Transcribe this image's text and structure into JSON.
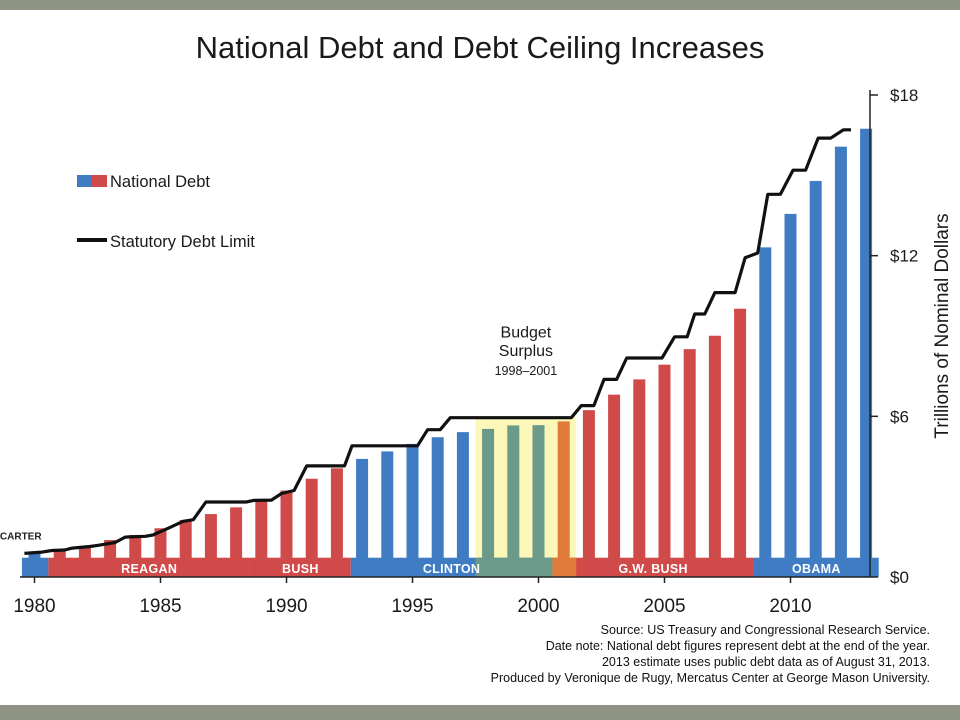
{
  "chart_data": {
    "type": "bar",
    "title": "National Debt and Debt Ceiling Increases",
    "ylabel": "Trillions of Nominal Dollars",
    "ylim": [
      0,
      18
    ],
    "y_ticks": [
      {
        "value": 0,
        "label": "$0"
      },
      {
        "value": 6,
        "label": "$6"
      },
      {
        "value": 12,
        "label": "$12"
      },
      {
        "value": 18,
        "label": "$18"
      }
    ],
    "x_ticks": [
      1980,
      1985,
      1990,
      1995,
      2000,
      2005,
      2010
    ],
    "years": [
      1980,
      1981,
      1982,
      1983,
      1984,
      1985,
      1986,
      1987,
      1988,
      1989,
      1990,
      1991,
      1992,
      1993,
      1994,
      1995,
      1996,
      1997,
      1998,
      1999,
      2000,
      2001,
      2002,
      2003,
      2004,
      2005,
      2006,
      2007,
      2008,
      2009,
      2010,
      2011,
      2012,
      2013
    ],
    "series": [
      {
        "name": "National Debt",
        "values": [
          0.91,
          1.0,
          1.14,
          1.38,
          1.57,
          1.82,
          2.13,
          2.35,
          2.6,
          2.86,
          3.23,
          3.67,
          4.06,
          4.41,
          4.69,
          4.97,
          5.22,
          5.41,
          5.53,
          5.66,
          5.67,
          5.81,
          6.23,
          6.81,
          7.38,
          7.93,
          8.51,
          9.01,
          10.02,
          12.31,
          13.56,
          14.79,
          16.07,
          16.74
        ]
      },
      {
        "name": "Statutory Debt Limit",
        "points": [
          [
            1979.6,
            0.88
          ],
          [
            1980.3,
            0.93
          ],
          [
            1980.7,
            0.99
          ],
          [
            1981.2,
            1.01
          ],
          [
            1981.5,
            1.08
          ],
          [
            1982.2,
            1.14
          ],
          [
            1982.5,
            1.18
          ],
          [
            1983.2,
            1.29
          ],
          [
            1983.6,
            1.49
          ],
          [
            1984.4,
            1.52
          ],
          [
            1984.7,
            1.57
          ],
          [
            1985.3,
            1.82
          ],
          [
            1985.9,
            2.08
          ],
          [
            1986.3,
            2.14
          ],
          [
            1986.8,
            2.8
          ],
          [
            1988.4,
            2.8
          ],
          [
            1988.7,
            2.86
          ],
          [
            1989.4,
            2.87
          ],
          [
            1989.8,
            3.12
          ],
          [
            1990.3,
            3.23
          ],
          [
            1990.8,
            4.15
          ],
          [
            1991.9,
            4.15
          ],
          [
            1992.3,
            4.15
          ],
          [
            1992.6,
            4.9
          ],
          [
            1995.2,
            4.9
          ],
          [
            1995.6,
            5.5
          ],
          [
            1996.1,
            5.5
          ],
          [
            1996.5,
            5.95
          ],
          [
            2000.0,
            5.95
          ],
          [
            2001.3,
            5.95
          ],
          [
            2001.7,
            6.4
          ],
          [
            2002.2,
            6.4
          ],
          [
            2002.6,
            7.38
          ],
          [
            2003.1,
            7.38
          ],
          [
            2003.5,
            8.18
          ],
          [
            2004.7,
            8.18
          ],
          [
            2004.9,
            8.18
          ],
          [
            2005.4,
            8.97
          ],
          [
            2005.9,
            8.97
          ],
          [
            2006.2,
            9.82
          ],
          [
            2006.6,
            9.82
          ],
          [
            2007.0,
            10.62
          ],
          [
            2007.8,
            10.62
          ],
          [
            2008.2,
            11.92
          ],
          [
            2008.7,
            12.1
          ],
          [
            2009.1,
            14.29
          ],
          [
            2009.6,
            14.29
          ],
          [
            2010.1,
            15.19
          ],
          [
            2010.6,
            15.19
          ],
          [
            2011.1,
            16.39
          ],
          [
            2011.6,
            16.39
          ],
          [
            2012.1,
            16.7
          ],
          [
            2012.4,
            16.7
          ]
        ]
      }
    ],
    "legend": [
      {
        "name": "National Debt",
        "colors": [
          "#3f7cc4",
          "#d04a4a"
        ]
      },
      {
        "name": "Statutory Debt Limit",
        "colors": [
          "#111111"
        ]
      }
    ],
    "presidencies": [
      {
        "name": "CARTER",
        "start": 1979.5,
        "end": 1980.55,
        "color": "#3f7cc4",
        "label_above": true
      },
      {
        "name": "REAGAN",
        "start": 1980.55,
        "end": 1988.55,
        "color": "#d04a4a"
      },
      {
        "name": "BUSH",
        "start": 1988.55,
        "end": 1992.55,
        "color": "#d04a4a"
      },
      {
        "name": "CLINTON",
        "start": 1992.55,
        "end": 2000.55,
        "color": "#3f7cc4"
      },
      {
        "name": "G.W. BUSH",
        "start": 2000.55,
        "end": 2008.55,
        "color": "#d04a4a"
      },
      {
        "name": "OBAMA",
        "start": 2008.55,
        "end": 2013.5,
        "color": "#3f7cc4"
      }
    ],
    "surplus": {
      "start": 1997.5,
      "end": 2001.5,
      "label_lines": [
        "Budget",
        "Surplus"
      ],
      "years_label": "1998–2001",
      "colors": {
        "fill": "#fbf7b8",
        "overlap_blue": "#6b9a8a",
        "overlap_red": "#e07a3a"
      }
    },
    "colors": {
      "democrat": "#3f7cc4",
      "republican": "#d04a4a",
      "limit": "#111111"
    }
  },
  "source": {
    "line1": "Source: US Treasury and Congressional Research Service.",
    "line2": "Date note: National debt figures represent debt at the end of the year.",
    "line3": "2013 estimate uses public debt data as of August 31, 2013.",
    "line4": "Produced by Veronique de Rugy, Mercatus Center at George Mason University."
  }
}
